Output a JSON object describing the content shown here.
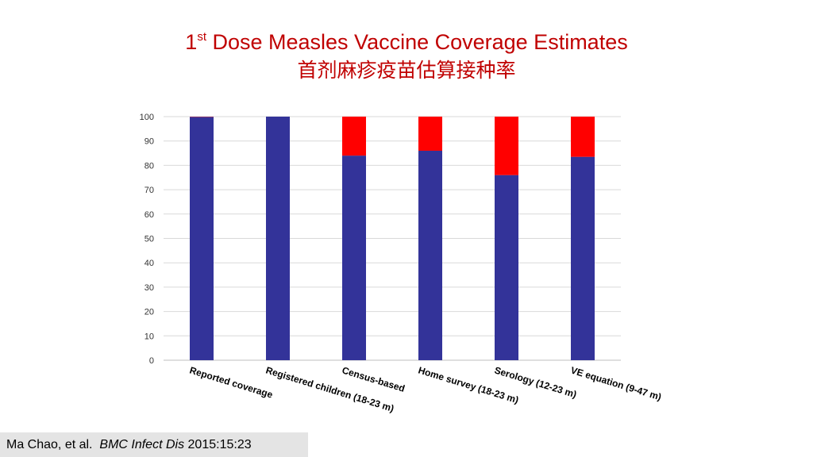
{
  "title": {
    "prefix": "1",
    "superscript": "st",
    "main": " Dose Measles Vaccine Coverage Estimates",
    "chinese": "首剂麻疹疫苗估算接种率"
  },
  "citation": {
    "authors": "Ma Chao, et al.",
    "journal": "BMC Infect Dis",
    "ref": "2015:15:23"
  },
  "colors": {
    "title": "#c00000",
    "bar_primary": "#333399",
    "bar_remainder": "#ff0000",
    "grid": "#d9d9d9"
  },
  "chart_data": {
    "type": "bar",
    "stacked": true,
    "categories": [
      "Reported coverage",
      "Registered children (18-23 m)",
      "Census-based",
      "Home survey (18-23 m)",
      "Serology (12-23 m)",
      "VE equation (9-47 m)"
    ],
    "series": [
      {
        "color": "#333399",
        "values": [
          99.9,
          100,
          84,
          86,
          76,
          83.5
        ]
      },
      {
        "color": "#ff0000",
        "values": [
          0.1,
          0,
          16,
          14,
          24,
          16.5
        ]
      }
    ],
    "ylim": [
      0,
      100
    ],
    "yticks": [
      0,
      10,
      20,
      30,
      40,
      50,
      60,
      70,
      80,
      90,
      100
    ],
    "xlabel": "",
    "ylabel": "",
    "grid": true,
    "legend": "none"
  }
}
